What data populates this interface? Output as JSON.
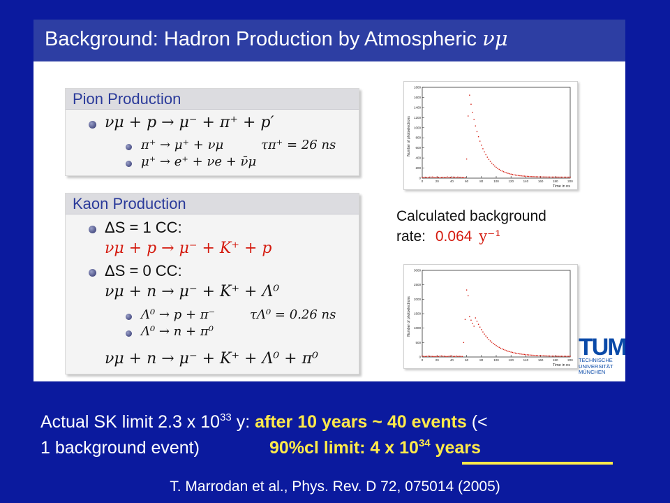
{
  "slide_image": {
    "title_text": "Background: Hadron Production by Atmospheric",
    "title_symbol": "νμ",
    "pion_box": {
      "header": "Pion Production",
      "lines": [
        "νμ + p → μ⁻ + π⁺ + p′",
        "π⁺ → μ⁺ + νμ",
        "τπ⁺ = 26 ns",
        "μ⁺ → e⁺ + νe + ν̄μ"
      ]
    },
    "kaon_box": {
      "header": "Kaon Production",
      "lines": [
        "ΔS = 1 CC:",
        "νμ + p → μ⁻ + K⁺ + p",
        "ΔS = 0 CC:",
        "νμ + n → μ⁻ + K⁺ + Λ⁰",
        "Λ⁰ → p + π⁻",
        "τΛ⁰ = 0.26 ns",
        "Λ⁰ → n + π⁰",
        "νμ + n → μ⁻ + K⁺ + Λ⁰ + π⁰"
      ]
    },
    "calc": {
      "line1": "Calculated background",
      "line2_prefix": "rate:",
      "rate_value": "0.064",
      "rate_unit": "y⁻¹"
    },
    "logo": {
      "letters": "TUM",
      "sub_lines": [
        "TECHNISCHE",
        "UNIVERSITÄT",
        "MÜNCHEN"
      ]
    },
    "plot1": {
      "ylabel": "Number of photoelectrons",
      "xlabel": "Time in ns",
      "y_ticks": [
        "0",
        "200",
        "400",
        "600",
        "800",
        "1000",
        "1200",
        "1400",
        "1600",
        "1800"
      ],
      "x_ticks": [
        "0",
        "20",
        "40",
        "60",
        "80",
        "100",
        "120",
        "140",
        "160",
        "180",
        "200"
      ]
    },
    "plot2": {
      "ylabel": "Number of photoelectrons",
      "xlabel": "Time in ns",
      "y_ticks": [
        "0",
        "500",
        "1000",
        "1500",
        "2000",
        "2500",
        "3000"
      ],
      "x_ticks": [
        "0",
        "20",
        "40",
        "60",
        "80",
        "100",
        "120",
        "140",
        "160",
        "180",
        "200"
      ]
    }
  },
  "bottom": {
    "line1_a": "Actual SK limit 2.3 x 10",
    "line1_exp": "33",
    "line1_b": " y: ",
    "line1_yellow": "after 10 years  ~ 40 events",
    "line1_c": " (<",
    "line2_a": "1 background event)",
    "line2_yellow_a": "90%cl limit:   4 x 10",
    "line2_exp": "34",
    "line2_yellow_b": " years"
  },
  "citation": "T. Marrodan et al., Phys. Rev. D 72, 075014 (2005)",
  "colors": {
    "slide_background": "#0b1a9e",
    "title_bar": "#2d3ea3",
    "highlight_yellow": "#ffea4a",
    "formula_red": "#d41a0e",
    "tum_blue": "#0a4aa8"
  }
}
